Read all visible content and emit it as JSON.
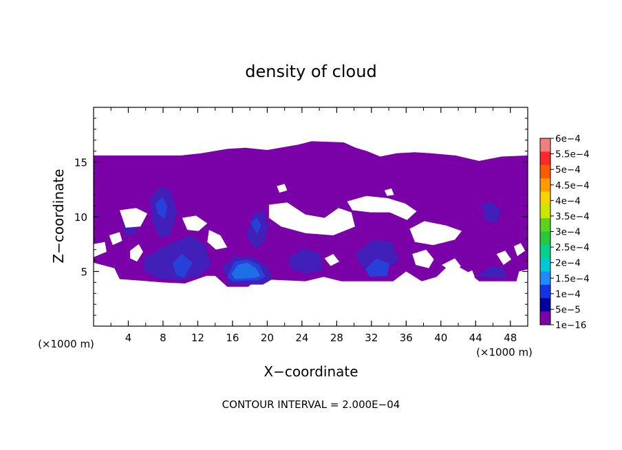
{
  "chart_data": {
    "type": "heatmap",
    "title": "density of cloud",
    "xlabel": "X−coordinate",
    "ylabel": "Z−coordinate",
    "x_unit_left": "(×1000 m)",
    "x_unit_right": "(×1000 m)",
    "footer": "CONTOUR INTERVAL = 2.000E−04",
    "xlim": [
      0,
      50
    ],
    "ylim": [
      0,
      20
    ],
    "x_ticks": [
      4,
      8,
      12,
      16,
      20,
      24,
      28,
      32,
      36,
      40,
      44,
      48
    ],
    "x_tick_labels": [
      "4",
      "8",
      "12",
      "16",
      "20",
      "24",
      "28",
      "32",
      "36",
      "40",
      "44",
      "48"
    ],
    "y_ticks": [
      5,
      10,
      15
    ],
    "y_tick_labels": [
      "5",
      "10",
      "15"
    ],
    "colorbar": {
      "labels": [
        "6e−4",
        "5.5e−4",
        "5e−4",
        "4.5e−4",
        "4e−4",
        "3.5e−4",
        "3e−4",
        "2.5e−4",
        "2e−4",
        "1.5e−4",
        "1e−4",
        "5e−5",
        "1e−16"
      ],
      "colors": [
        "#f08080",
        "#ff2828",
        "#ff5a00",
        "#ff9a00",
        "#f5d200",
        "#c8e800",
        "#5ad21e",
        "#28c83c",
        "#00d28c",
        "#00c8d2",
        "#1e8cff",
        "#1432e6",
        "#0000a0",
        "#7a00a8"
      ]
    },
    "field_colors": {
      "base": "#7a00a8",
      "low": "#4020b8",
      "mid": "#2840d8",
      "high": "#1e6ee8"
    },
    "regions": [
      {
        "kind": "base",
        "points": [
          [
            0,
            15.6
          ],
          [
            10,
            15.6
          ],
          [
            12.4,
            15.8
          ],
          [
            15.4,
            16.2
          ],
          [
            17.5,
            16.3
          ],
          [
            20,
            16.1
          ],
          [
            23.6,
            16.6
          ],
          [
            25.1,
            16.9
          ],
          [
            28.8,
            16.8
          ],
          [
            30.2,
            16.3
          ],
          [
            31.5,
            16.0
          ],
          [
            33,
            15.5
          ],
          [
            34.9,
            15.8
          ],
          [
            37,
            15.9
          ],
          [
            38.9,
            15.8
          ],
          [
            41.7,
            15.6
          ],
          [
            44.4,
            15.1
          ],
          [
            47,
            15.5
          ],
          [
            50,
            15.6
          ],
          [
            50,
            5.2
          ],
          [
            49,
            5.0
          ],
          [
            48.7,
            4.1
          ],
          [
            44.4,
            4.1
          ],
          [
            43,
            5.0
          ],
          [
            41.2,
            5.8
          ],
          [
            39.5,
            4.5
          ],
          [
            37.8,
            4.1
          ],
          [
            36,
            5.0
          ],
          [
            34.5,
            4.1
          ],
          [
            28.5,
            4.1
          ],
          [
            26.5,
            4.5
          ],
          [
            24.4,
            4.1
          ],
          [
            18.9,
            4.3
          ],
          [
            17.8,
            3.6
          ],
          [
            15.4,
            3.6
          ],
          [
            14,
            4.6
          ],
          [
            13,
            4.6
          ],
          [
            10.5,
            3.9
          ],
          [
            7.9,
            4.0
          ],
          [
            4.8,
            4.2
          ],
          [
            3,
            4.3
          ],
          [
            2.4,
            5.3
          ],
          [
            0,
            5.8
          ]
        ]
      },
      {
        "kind": "low",
        "points": [
          [
            5.7,
            6.1
          ],
          [
            8.1,
            7.3
          ],
          [
            11.2,
            8.3
          ],
          [
            12.8,
            7.4
          ],
          [
            13.5,
            5.6
          ],
          [
            12.2,
            4.6
          ],
          [
            10,
            4.2
          ],
          [
            7.2,
            4.4
          ],
          [
            5.9,
            5.1
          ]
        ]
      },
      {
        "kind": "low",
        "points": [
          [
            6.5,
            11.6
          ],
          [
            7.6,
            12.8
          ],
          [
            8.9,
            12.4
          ],
          [
            9.6,
            10.4
          ],
          [
            8.8,
            8.3
          ],
          [
            7.6,
            8.1
          ],
          [
            6.8,
            9.6
          ]
        ]
      },
      {
        "kind": "low",
        "points": [
          [
            3.3,
            9.8
          ],
          [
            4.4,
            10.2
          ],
          [
            5.1,
            9.4
          ],
          [
            4.7,
            8.3
          ],
          [
            3.6,
            8.4
          ]
        ]
      },
      {
        "kind": "low",
        "points": [
          [
            17.6,
            8.3
          ],
          [
            18.4,
            10.3
          ],
          [
            19.5,
            10.6
          ],
          [
            20.1,
            9.2
          ],
          [
            19.6,
            7.6
          ],
          [
            18.6,
            7.1
          ]
        ]
      },
      {
        "kind": "low",
        "points": [
          [
            22.4,
            6.2
          ],
          [
            24.2,
            7.1
          ],
          [
            26.1,
            6.6
          ],
          [
            26.4,
            5.2
          ],
          [
            24.6,
            4.8
          ],
          [
            22.8,
            5.2
          ]
        ]
      },
      {
        "kind": "low",
        "points": [
          [
            30.1,
            6.6
          ],
          [
            32.2,
            7.9
          ],
          [
            34.4,
            7.7
          ],
          [
            35.1,
            6.0
          ],
          [
            33.4,
            5.0
          ],
          [
            31.1,
            5.2
          ]
        ]
      },
      {
        "kind": "low",
        "points": [
          [
            44.7,
            11.1
          ],
          [
            45.8,
            11.4
          ],
          [
            46.9,
            10.6
          ],
          [
            46.4,
            9.4
          ],
          [
            45.1,
            9.7
          ]
        ]
      },
      {
        "kind": "low",
        "points": [
          [
            44.2,
            4.5
          ],
          [
            45.6,
            5.5
          ],
          [
            47.2,
            5.3
          ],
          [
            47.6,
            4.4
          ]
        ]
      },
      {
        "kind": "low",
        "points": [
          [
            14.8,
            5.4
          ],
          [
            16.3,
            6.4
          ],
          [
            18.4,
            6.3
          ],
          [
            20.1,
            5.4
          ],
          [
            20.6,
            4.3
          ],
          [
            19.5,
            3.8
          ],
          [
            15.6,
            3.8
          ]
        ]
      },
      {
        "kind": "mid",
        "points": [
          [
            15.4,
            4.5
          ],
          [
            16.2,
            5.9
          ],
          [
            17.7,
            6.1
          ],
          [
            19.1,
            5.6
          ],
          [
            19.8,
            4.5
          ],
          [
            18.9,
            4.2
          ],
          [
            16.1,
            4.1
          ]
        ]
      },
      {
        "kind": "mid",
        "points": [
          [
            7.1,
            11.2
          ],
          [
            7.9,
            11.8
          ],
          [
            8.5,
            11.0
          ],
          [
            8.2,
            9.8
          ],
          [
            7.4,
            10.3
          ]
        ]
      },
      {
        "kind": "mid",
        "points": [
          [
            9.1,
            5.8
          ],
          [
            10.2,
            6.6
          ],
          [
            11.4,
            5.8
          ],
          [
            10.4,
            4.4
          ],
          [
            9.5,
            4.7
          ]
        ]
      },
      {
        "kind": "mid",
        "points": [
          [
            31.3,
            5.2
          ],
          [
            32.6,
            6.2
          ],
          [
            34.1,
            5.7
          ],
          [
            33.8,
            4.6
          ],
          [
            31.8,
            4.5
          ]
        ]
      },
      {
        "kind": "mid",
        "points": [
          [
            18.1,
            9.5
          ],
          [
            18.8,
            9.9
          ],
          [
            19.3,
            9.2
          ],
          [
            18.8,
            8.4
          ]
        ]
      },
      {
        "kind": "high",
        "points": [
          [
            15.9,
            4.8
          ],
          [
            16.6,
            5.6
          ],
          [
            17.7,
            5.8
          ],
          [
            18.7,
            5.3
          ],
          [
            19.2,
            4.6
          ],
          [
            18.6,
            4.4
          ],
          [
            16.3,
            4.3
          ]
        ]
      }
    ],
    "gaps": [
      [
        [
          3.0,
          10.6
        ],
        [
          4.9,
          10.8
        ],
        [
          6.2,
          10.3
        ],
        [
          5.4,
          9.1
        ],
        [
          3.7,
          9.0
        ]
      ],
      [
        [
          1.8,
          8.3
        ],
        [
          3.0,
          8.6
        ],
        [
          3.3,
          7.8
        ],
        [
          2.2,
          7.4
        ]
      ],
      [
        [
          0,
          7.5
        ],
        [
          1.3,
          7.7
        ],
        [
          1.5,
          6.8
        ],
        [
          0,
          6.3
        ]
      ],
      [
        [
          4.2,
          6.9
        ],
        [
          5.2,
          7.5
        ],
        [
          5.7,
          6.8
        ],
        [
          5.0,
          5.9
        ],
        [
          4.2,
          6.2
        ]
      ],
      [
        [
          10.2,
          9.9
        ],
        [
          11.8,
          10.1
        ],
        [
          13.1,
          9.4
        ],
        [
          12.1,
          8.7
        ],
        [
          10.8,
          8.8
        ]
      ],
      [
        [
          13.3,
          8.8
        ],
        [
          14.6,
          8.3
        ],
        [
          15.4,
          7.2
        ],
        [
          14.1,
          7.0
        ],
        [
          13.1,
          7.7
        ]
      ],
      [
        [
          20.2,
          11.1
        ],
        [
          22.3,
          11.3
        ],
        [
          24.4,
          10.2
        ],
        [
          26.6,
          9.9
        ],
        [
          28.2,
          10.8
        ],
        [
          29.7,
          10.4
        ],
        [
          30.1,
          9.1
        ],
        [
          27.6,
          8.3
        ],
        [
          24.4,
          8.5
        ],
        [
          21.6,
          9.1
        ],
        [
          20.2,
          9.9
        ]
      ],
      [
        [
          29.2,
          11.4
        ],
        [
          31.4,
          11.9
        ],
        [
          33.9,
          11.7
        ],
        [
          35.9,
          11.2
        ],
        [
          37.2,
          10.5
        ],
        [
          36.1,
          9.7
        ],
        [
          34.1,
          10.4
        ],
        [
          31.9,
          10.4
        ],
        [
          29.8,
          10.6
        ]
      ],
      [
        [
          36.4,
          8.9
        ],
        [
          38.1,
          9.6
        ],
        [
          40.6,
          9.2
        ],
        [
          42.4,
          8.7
        ],
        [
          41.6,
          7.9
        ],
        [
          39.1,
          7.4
        ],
        [
          37.0,
          7.7
        ]
      ],
      [
        [
          36.7,
          6.6
        ],
        [
          38.3,
          7.0
        ],
        [
          39.2,
          6.1
        ],
        [
          38.6,
          5.3
        ],
        [
          37.1,
          5.6
        ]
      ],
      [
        [
          40.1,
          5.6
        ],
        [
          41.6,
          6.2
        ],
        [
          42.3,
          5.5
        ],
        [
          41.5,
          4.8
        ]
      ],
      [
        [
          46.4,
          6.6
        ],
        [
          47.4,
          6.9
        ],
        [
          48.1,
          6.1
        ],
        [
          47.2,
          5.6
        ]
      ],
      [
        [
          48.4,
          7.3
        ],
        [
          49.2,
          7.6
        ],
        [
          49.7,
          6.9
        ],
        [
          48.8,
          6.4
        ]
      ],
      [
        [
          42.7,
          4.8
        ],
        [
          43.6,
          5.1
        ],
        [
          43.9,
          4.5
        ],
        [
          43.1,
          4.3
        ]
      ],
      [
        [
          26.6,
          6.2
        ],
        [
          27.6,
          6.6
        ],
        [
          28.3,
          5.9
        ],
        [
          27.3,
          5.5
        ]
      ],
      [
        [
          21.1,
          12.8
        ],
        [
          22.0,
          13.0
        ],
        [
          22.3,
          12.4
        ],
        [
          21.4,
          12.2
        ]
      ],
      [
        [
          33.5,
          12.4
        ],
        [
          34.3,
          12.6
        ],
        [
          34.6,
          12.0
        ],
        [
          33.8,
          11.9
        ]
      ]
    ]
  }
}
